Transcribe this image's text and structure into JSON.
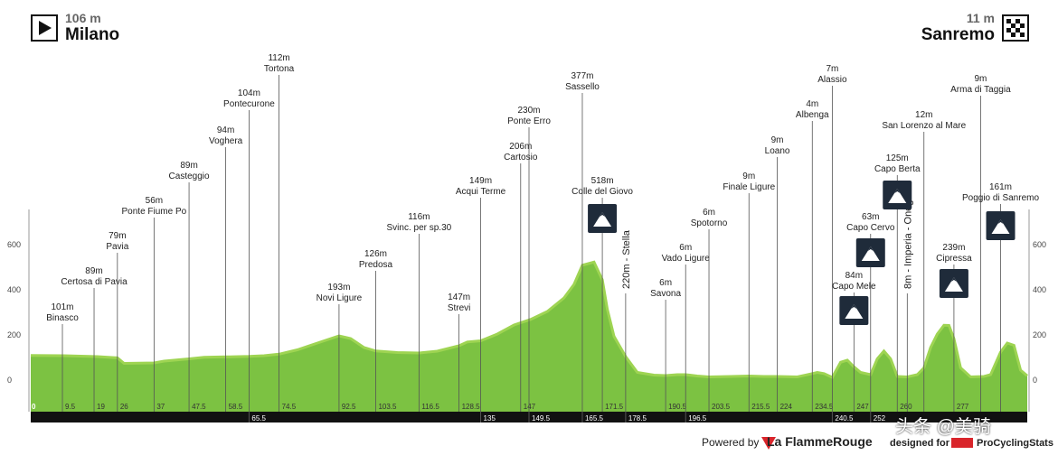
{
  "header": {
    "start_alt": "106 m",
    "start_city": "Milano",
    "end_alt": "11 m",
    "end_city": "Sanremo"
  },
  "footer": {
    "powered": "Powered by",
    "flamme": "La FlammeRouge",
    "designed": "designed for",
    "pcs": "ProCyclingStats",
    "watermark": "头条 @美骑"
  },
  "colors": {
    "profile_light": "#9ed452",
    "profile_dark": "#7cc242",
    "km_bar": "#111111",
    "climb_icon": "#1f2b3a",
    "brand_red": "#d9252b"
  },
  "chart_data": {
    "type": "area",
    "xlim": [
      0,
      299
    ],
    "ylim": [
      -100,
      780
    ],
    "yticks": [
      0,
      200,
      400,
      600
    ],
    "profile": [
      [
        0,
        105
      ],
      [
        10,
        104
      ],
      [
        20,
        100
      ],
      [
        26,
        95
      ],
      [
        28,
        70
      ],
      [
        37,
        72
      ],
      [
        40,
        80
      ],
      [
        47.5,
        90
      ],
      [
        52,
        97
      ],
      [
        58.5,
        99
      ],
      [
        65.5,
        101
      ],
      [
        70,
        104
      ],
      [
        74.5,
        111
      ],
      [
        80,
        130
      ],
      [
        86,
        160
      ],
      [
        92.5,
        192
      ],
      [
        96,
        180
      ],
      [
        100,
        140
      ],
      [
        103.5,
        125
      ],
      [
        110,
        118
      ],
      [
        116.5,
        116
      ],
      [
        122,
        124
      ],
      [
        128.5,
        148
      ],
      [
        131,
        165
      ],
      [
        135,
        170
      ],
      [
        140,
        200
      ],
      [
        145,
        240
      ],
      [
        147,
        250
      ],
      [
        150,
        265
      ],
      [
        155,
        300
      ],
      [
        160,
        360
      ],
      [
        163,
        420
      ],
      [
        165.5,
        505
      ],
      [
        169,
        519
      ],
      [
        171.5,
        440
      ],
      [
        173,
        310
      ],
      [
        175,
        190
      ],
      [
        178.5,
        100
      ],
      [
        182,
        30
      ],
      [
        187,
        18
      ],
      [
        190.5,
        16
      ],
      [
        194,
        20
      ],
      [
        196.5,
        20
      ],
      [
        200,
        14
      ],
      [
        203.5,
        10
      ],
      [
        210,
        12
      ],
      [
        215.5,
        14
      ],
      [
        220,
        12
      ],
      [
        224,
        12
      ],
      [
        230,
        10
      ],
      [
        234.5,
        25
      ],
      [
        236,
        30
      ],
      [
        238,
        25
      ],
      [
        240.5,
        8
      ],
      [
        243,
        75
      ],
      [
        245,
        84
      ],
      [
        247,
        55
      ],
      [
        249,
        30
      ],
      [
        252,
        20
      ],
      [
        254,
        90
      ],
      [
        256,
        125
      ],
      [
        258,
        90
      ],
      [
        260,
        12
      ],
      [
        263,
        10
      ],
      [
        266,
        20
      ],
      [
        268,
        50
      ],
      [
        270,
        140
      ],
      [
        272,
        200
      ],
      [
        274,
        239
      ],
      [
        275.5,
        238
      ],
      [
        277,
        180
      ],
      [
        279,
        50
      ],
      [
        282,
        10
      ],
      [
        286,
        12
      ],
      [
        288,
        20
      ],
      [
        291,
        120
      ],
      [
        293,
        160
      ],
      [
        295,
        150
      ],
      [
        297,
        40
      ],
      [
        299,
        15
      ]
    ],
    "bar_ticks": [
      "65.5",
      "135",
      "149.5",
      "165.5",
      "178.5",
      "196.5",
      "240.5",
      "252"
    ],
    "km_ticks": [
      "0",
      "9.5",
      "19",
      "26",
      "37",
      "47.5",
      "58.5",
      "74.5",
      "92.5",
      "103.5",
      "116.5",
      "128.5",
      "147",
      "171.5",
      "190.5",
      "203.5",
      "215.5",
      "224",
      "234.5",
      "247",
      "260",
      "277",
      "299"
    ],
    "waypoints": [
      {
        "name": "Binasco",
        "alt": "101m",
        "km": 9.5
      },
      {
        "name": "Certosa di Pavia",
        "alt": "89m",
        "km": 19
      },
      {
        "name": "Pavia",
        "alt": "79m",
        "km": 26
      },
      {
        "name": "Ponte Fiume Po",
        "alt": "56m",
        "km": 37
      },
      {
        "name": "Casteggio",
        "alt": "89m",
        "km": 47.5
      },
      {
        "name": "Voghera",
        "alt": "94m",
        "km": 58.5
      },
      {
        "name": "Pontecurone",
        "alt": "104m",
        "km": 65.5
      },
      {
        "name": "Tortona",
        "alt": "112m",
        "km": 74.5
      },
      {
        "name": "Novi Ligure",
        "alt": "193m",
        "km": 92.5
      },
      {
        "name": "Predosa",
        "alt": "126m",
        "km": 103.5
      },
      {
        "name": "Svinc. per sp.30",
        "alt": "116m",
        "km": 116.5
      },
      {
        "name": "Strevi",
        "alt": "147m",
        "km": 128.5
      },
      {
        "name": "Acqui Terme",
        "alt": "149m",
        "km": 135
      },
      {
        "name": "Cartosio",
        "alt": "206m",
        "km": 147
      },
      {
        "name": "Ponte Erro",
        "alt": "230m",
        "km": 149.5
      },
      {
        "name": "Sassello",
        "alt": "377m",
        "km": 165.5
      },
      {
        "name": "Colle del Giovo",
        "alt": "518m",
        "km": 171.5
      },
      {
        "name": "Savona",
        "alt": "6m",
        "km": 190.5
      },
      {
        "name": "Vado Ligure",
        "alt": "6m",
        "km": 196.5
      },
      {
        "name": "Spotorno",
        "alt": "6m",
        "km": 203.5
      },
      {
        "name": "Finale Ligure",
        "alt": "9m",
        "km": 215.5
      },
      {
        "name": "Loano",
        "alt": "9m",
        "km": 224
      },
      {
        "name": "Albenga",
        "alt": "4m",
        "km": 234.5
      },
      {
        "name": "Alassio",
        "alt": "7m",
        "km": 240.5
      },
      {
        "name": "Capo Mele",
        "alt": "84m",
        "km": 247
      },
      {
        "name": "Capo Cervo",
        "alt": "63m",
        "km": 252
      },
      {
        "name": "Capo Berta",
        "alt": "125m",
        "km": 260
      },
      {
        "name": "San Lorenzo al Mare",
        "alt": "12m",
        "km": 268
      },
      {
        "name": "Cipressa",
        "alt": "239m",
        "km": 277
      },
      {
        "name": "Arma di Taggia",
        "alt": "9m",
        "km": 285
      },
      {
        "name": "Poggio di Sanremo",
        "alt": "161m",
        "km": 291
      }
    ],
    "vertical_labels": [
      {
        "text": "220m - Stella",
        "km": 178.5
      },
      {
        "text": "8m - Imperia - Oneglia",
        "km": 263
      }
    ],
    "climbs": [
      {
        "name": "Colle del Giovo",
        "km": 171.5
      },
      {
        "name": "Capo Mele",
        "km": 247
      },
      {
        "name": "Capo Cervo",
        "km": 252
      },
      {
        "name": "Capo Berta",
        "km": 260
      },
      {
        "name": "Cipressa",
        "km": 277
      },
      {
        "name": "Poggio di Sanremo",
        "km": 291
      }
    ]
  }
}
